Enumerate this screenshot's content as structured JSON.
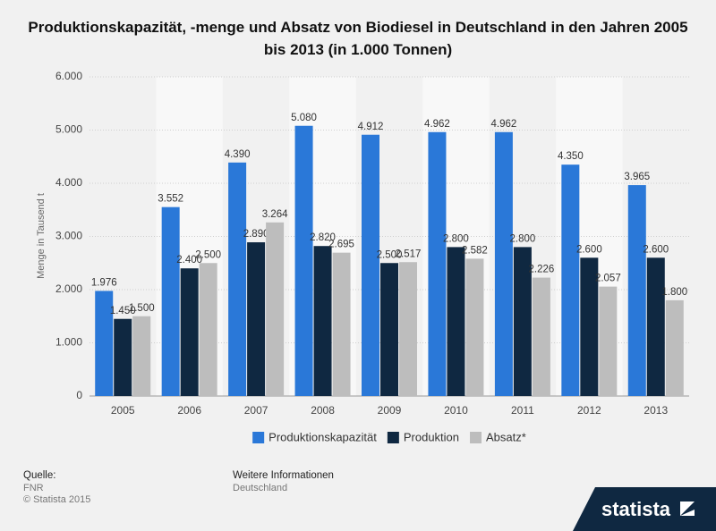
{
  "chart_data": {
    "type": "bar",
    "title": "Produktionskapazität, -menge und Absatz von Biodiesel in Deutschland in den Jahren 2005 bis 2013 (in 1.000 Tonnen)",
    "y_label": "Menge in Tausend t",
    "categories": [
      "2005",
      "2006",
      "2007",
      "2008",
      "2009",
      "2010",
      "2011",
      "2012",
      "2013"
    ],
    "series": [
      {
        "name": "Produktionskapazität",
        "color": "#2a78d8",
        "values": [
          1976,
          3552,
          4390,
          5080,
          4912,
          4962,
          4962,
          4350,
          3965
        ],
        "value_labels": [
          "1.976",
          "3.552",
          "4.390",
          "5.080",
          "4.912",
          "4.962",
          "4.962",
          "4.350",
          "3.965"
        ]
      },
      {
        "name": "Produktion",
        "color": "#0f2841",
        "values": [
          1450,
          2400,
          2890,
          2820,
          2500,
          2800,
          2800,
          2600,
          2600
        ],
        "value_labels": [
          "1.450",
          "2.400",
          "2.890",
          "2.820",
          "2.500",
          "2.800",
          "2.800",
          "2.600",
          "2.600"
        ]
      },
      {
        "name": "Absatz*",
        "color": "#bdbdbd",
        "values": [
          1500,
          2500,
          3264,
          2695,
          2517,
          2582,
          2226,
          2057,
          1800
        ],
        "value_labels": [
          "1.500",
          "2.500",
          "3.264",
          "2.695",
          "2.517",
          "2.582",
          "2.226",
          "2.057",
          "1.800"
        ]
      }
    ],
    "ylim": [
      0,
      6000
    ],
    "yticks": [
      0,
      {
        "value": 1000,
        "label": "1.000"
      },
      {
        "value": 2000,
        "label": "2.000"
      },
      {
        "value": 3000,
        "label": "3.000"
      },
      {
        "value": 4000,
        "label": "4.000"
      },
      {
        "value": 5000,
        "label": "5.000"
      },
      {
        "value": 6000,
        "label": "6.000"
      }
    ],
    "grid": true,
    "legend": "bottom"
  },
  "footer": {
    "source_heading": "Quelle:",
    "source": "FNR",
    "copyright": "© Statista 2015",
    "info_heading": "Weitere Informationen",
    "info": "Deutschland",
    "logo": "statista"
  }
}
